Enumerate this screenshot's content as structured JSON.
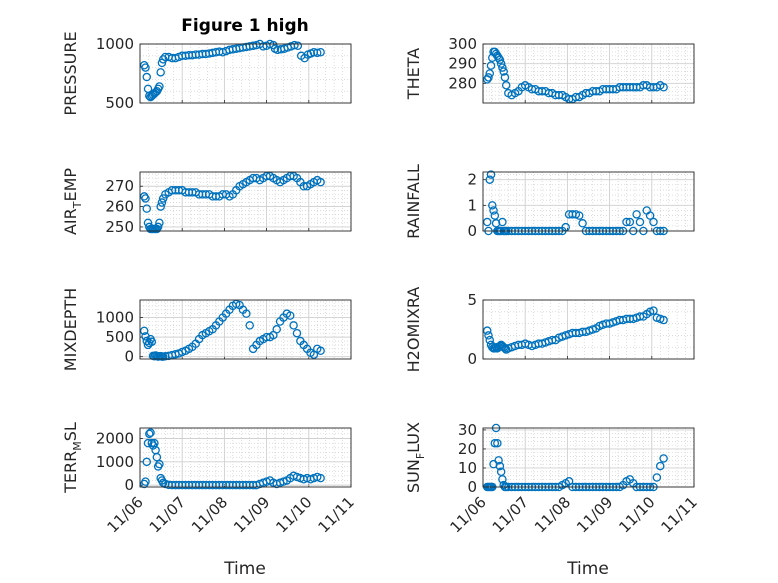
{
  "chart_data": {
    "type": "scatter",
    "title": "Figure 1 high",
    "xlabel": "Time",
    "xlim": [
      0,
      5
    ],
    "xticks": [
      0,
      1,
      2,
      3,
      4,
      5
    ],
    "xtick_labels": [
      "11/06",
      "11/07",
      "11/08",
      "11/09",
      "11/10",
      "11/11"
    ],
    "marker": "circle",
    "color": "#0072BD",
    "grid": "major+minor",
    "panels": [
      {
        "id": "pressure",
        "ylabel": "PRESSURE",
        "ylim": [
          500,
          1000
        ],
        "yticks": [
          500,
          1000
        ],
        "ytick_labels": [
          "500",
          "1000"
        ],
        "x": [
          0.1,
          0.13,
          0.16,
          0.19,
          0.22,
          0.25,
          0.28,
          0.31,
          0.34,
          0.37,
          0.4,
          0.43,
          0.46,
          0.49,
          0.52,
          0.55,
          0.6,
          0.68,
          0.76,
          0.84,
          0.92,
          1.0,
          1.08,
          1.16,
          1.24,
          1.32,
          1.4,
          1.48,
          1.56,
          1.64,
          1.72,
          1.8,
          1.88,
          1.96,
          2.04,
          2.12,
          2.2,
          2.28,
          2.36,
          2.44,
          2.52,
          2.6,
          2.68,
          2.76,
          2.84,
          2.92,
          3.0,
          3.08,
          3.16,
          3.2,
          3.26,
          3.34,
          3.42,
          3.5,
          3.58,
          3.66,
          3.74,
          3.82,
          3.9,
          3.98,
          4.05,
          4.12,
          4.2,
          4.28
        ],
        "y": [
          820,
          800,
          720,
          620,
          560,
          550,
          560,
          570,
          580,
          590,
          600,
          620,
          640,
          760,
          840,
          870,
          890,
          890,
          880,
          880,
          890,
          900,
          900,
          905,
          905,
          910,
          910,
          915,
          915,
          920,
          925,
          930,
          935,
          930,
          940,
          950,
          955,
          960,
          965,
          970,
          975,
          980,
          985,
          990,
          1000,
          980,
          985,
          1000,
          990,
          960,
          950,
          955,
          960,
          970,
          980,
          990,
          985,
          900,
          880,
          910,
          920,
          930,
          925,
          930
        ]
      },
      {
        "id": "theta",
        "ylabel": "THETA",
        "ylim": [
          270,
          300
        ],
        "yticks": [
          280,
          290,
          300
        ],
        "ytick_labels": [
          "280",
          "290",
          "300"
        ],
        "x": [
          0.1,
          0.13,
          0.16,
          0.19,
          0.22,
          0.25,
          0.28,
          0.31,
          0.34,
          0.37,
          0.4,
          0.43,
          0.46,
          0.49,
          0.52,
          0.55,
          0.6,
          0.68,
          0.76,
          0.84,
          0.92,
          1.0,
          1.08,
          1.16,
          1.24,
          1.32,
          1.4,
          1.48,
          1.56,
          1.64,
          1.72,
          1.8,
          1.88,
          1.96,
          2.04,
          2.12,
          2.2,
          2.28,
          2.36,
          2.44,
          2.52,
          2.6,
          2.68,
          2.76,
          2.84,
          2.92,
          3.0,
          3.08,
          3.16,
          3.24,
          3.32,
          3.4,
          3.48,
          3.56,
          3.64,
          3.72,
          3.8,
          3.88,
          3.96,
          4.04,
          4.12,
          4.2,
          4.28
        ],
        "y": [
          282,
          283,
          285,
          289,
          293,
          296,
          296,
          295,
          294,
          293,
          292,
          290,
          288,
          286,
          283,
          279,
          275,
          274,
          275,
          276,
          278,
          279,
          278,
          277,
          277,
          276,
          276,
          276,
          275,
          275,
          274,
          274,
          274,
          273,
          272,
          272,
          273,
          273,
          274,
          275,
          275,
          276,
          276,
          276,
          277,
          277,
          277,
          277,
          277,
          278,
          278,
          278,
          278,
          278,
          278,
          278,
          279,
          279,
          278,
          278,
          278,
          279,
          278
        ]
      },
      {
        "id": "air_temp",
        "ylabel": "AIR_TEMP",
        "ylabel_parts": [
          "AIR",
          "T",
          "EMP"
        ],
        "ylim": [
          248,
          277
        ],
        "yticks": [
          250,
          260,
          270
        ],
        "ytick_labels": [
          "250",
          "260",
          "270"
        ],
        "x": [
          0.1,
          0.13,
          0.16,
          0.19,
          0.22,
          0.25,
          0.28,
          0.31,
          0.34,
          0.37,
          0.4,
          0.43,
          0.46,
          0.49,
          0.52,
          0.55,
          0.6,
          0.68,
          0.76,
          0.84,
          0.92,
          1.0,
          1.08,
          1.16,
          1.24,
          1.32,
          1.4,
          1.48,
          1.56,
          1.64,
          1.72,
          1.8,
          1.88,
          1.96,
          2.04,
          2.12,
          2.2,
          2.28,
          2.36,
          2.44,
          2.52,
          2.6,
          2.68,
          2.76,
          2.84,
          2.92,
          3.0,
          3.08,
          3.16,
          3.24,
          3.32,
          3.4,
          3.48,
          3.56,
          3.64,
          3.72,
          3.8,
          3.88,
          3.96,
          4.04,
          4.12,
          4.2,
          4.28
        ],
        "y": [
          265,
          264,
          259,
          252,
          250,
          249,
          249,
          249,
          249,
          249,
          249,
          250,
          252,
          260,
          262,
          264,
          266,
          267,
          268,
          268,
          268,
          268,
          267,
          267,
          267,
          267,
          266,
          266,
          266,
          266,
          265,
          265,
          265,
          266,
          266,
          265,
          266,
          268,
          270,
          271,
          272,
          273,
          274,
          274,
          273,
          274,
          275,
          275,
          274,
          273,
          272,
          273,
          274,
          275,
          275,
          274,
          272,
          270,
          270,
          271,
          272,
          273,
          272
        ]
      },
      {
        "id": "rainfall",
        "ylabel": "RAINFALL",
        "ylim": [
          0,
          2.3
        ],
        "yticks": [
          0,
          1,
          2
        ],
        "ytick_labels": [
          "0",
          "1",
          "2"
        ],
        "x": [
          0.1,
          0.13,
          0.16,
          0.19,
          0.22,
          0.25,
          0.28,
          0.31,
          0.34,
          0.37,
          0.4,
          0.43,
          0.46,
          0.49,
          0.52,
          0.55,
          0.6,
          0.68,
          0.76,
          0.84,
          0.92,
          1.0,
          1.08,
          1.16,
          1.24,
          1.32,
          1.4,
          1.48,
          1.56,
          1.64,
          1.72,
          1.8,
          1.88,
          1.96,
          2.04,
          2.12,
          2.2,
          2.28,
          2.36,
          2.44,
          2.52,
          2.6,
          2.68,
          2.76,
          2.84,
          2.92,
          3.0,
          3.08,
          3.16,
          3.24,
          3.32,
          3.4,
          3.48,
          3.56,
          3.64,
          3.72,
          3.8,
          3.88,
          3.96,
          4.04,
          4.12,
          4.2,
          4.28
        ],
        "y": [
          0.35,
          0.0,
          2.0,
          2.2,
          1.0,
          0.8,
          0.6,
          0.3,
          0.0,
          0.0,
          0.0,
          0.0,
          0.35,
          0.0,
          0.0,
          0.0,
          0.0,
          0.0,
          0.0,
          0.0,
          0.0,
          0.0,
          0.0,
          0.0,
          0.0,
          0.0,
          0.0,
          0.0,
          0.0,
          0.0,
          0.0,
          0.0,
          0.0,
          0.15,
          0.65,
          0.65,
          0.65,
          0.6,
          0.3,
          0.0,
          0.0,
          0.0,
          0.0,
          0.0,
          0.0,
          0.0,
          0.0,
          0.0,
          0.0,
          0.0,
          0.0,
          0.35,
          0.35,
          0.0,
          0.65,
          0.35,
          0.0,
          0.8,
          0.6,
          0.35,
          0.0,
          0.0,
          0.0
        ]
      },
      {
        "id": "mixdepth",
        "ylabel": "MIXDEPTH",
        "ylim": [
          -60,
          1450
        ],
        "yticks": [
          0,
          500,
          1000
        ],
        "ytick_labels": [
          "0",
          "500",
          "1000"
        ],
        "x": [
          0.1,
          0.13,
          0.16,
          0.19,
          0.22,
          0.25,
          0.28,
          0.31,
          0.34,
          0.37,
          0.4,
          0.43,
          0.46,
          0.49,
          0.52,
          0.55,
          0.6,
          0.68,
          0.76,
          0.84,
          0.92,
          1.0,
          1.08,
          1.16,
          1.24,
          1.32,
          1.4,
          1.48,
          1.56,
          1.64,
          1.72,
          1.8,
          1.88,
          1.96,
          2.04,
          2.12,
          2.2,
          2.28,
          2.36,
          2.44,
          2.52,
          2.6,
          2.68,
          2.76,
          2.84,
          2.92,
          3.0,
          3.08,
          3.16,
          3.24,
          3.32,
          3.4,
          3.48,
          3.56,
          3.64,
          3.72,
          3.8,
          3.88,
          3.96,
          4.04,
          4.12,
          4.2,
          4.28
        ],
        "y": [
          660,
          520,
          400,
          300,
          350,
          450,
          380,
          20,
          10,
          30,
          15,
          0,
          10,
          15,
          0,
          0,
          10,
          20,
          40,
          60,
          80,
          120,
          150,
          200,
          250,
          330,
          450,
          550,
          600,
          650,
          700,
          800,
          900,
          1000,
          1100,
          1200,
          1300,
          1350,
          1320,
          1200,
          1100,
          800,
          200,
          300,
          400,
          450,
          500,
          500,
          550,
          700,
          900,
          1000,
          1100,
          1050,
          800,
          600,
          400,
          300,
          200,
          100,
          50,
          200,
          150
        ]
      },
      {
        "id": "h2omixra",
        "ylabel": "H2OMIXRA",
        "ylim": [
          0,
          5
        ],
        "yticks": [
          0,
          5
        ],
        "ytick_labels": [
          "0",
          "5"
        ],
        "x": [
          0.1,
          0.13,
          0.16,
          0.19,
          0.22,
          0.25,
          0.28,
          0.31,
          0.34,
          0.37,
          0.4,
          0.43,
          0.46,
          0.49,
          0.52,
          0.55,
          0.6,
          0.68,
          0.76,
          0.84,
          0.92,
          1.0,
          1.08,
          1.16,
          1.24,
          1.32,
          1.4,
          1.48,
          1.56,
          1.64,
          1.72,
          1.8,
          1.88,
          1.96,
          2.04,
          2.12,
          2.2,
          2.28,
          2.36,
          2.44,
          2.52,
          2.6,
          2.68,
          2.76,
          2.84,
          2.92,
          3.0,
          3.08,
          3.16,
          3.24,
          3.32,
          3.4,
          3.48,
          3.56,
          3.64,
          3.72,
          3.8,
          3.88,
          3.96,
          4.04,
          4.12,
          4.2,
          4.28
        ],
        "y": [
          2.4,
          2.0,
          1.6,
          1.2,
          1.0,
          0.9,
          0.9,
          1.0,
          0.9,
          1.0,
          1.1,
          1.2,
          1.1,
          1.0,
          0.9,
          0.8,
          0.9,
          1.0,
          1.1,
          1.2,
          1.2,
          1.3,
          1.2,
          1.1,
          1.2,
          1.3,
          1.3,
          1.4,
          1.5,
          1.6,
          1.6,
          1.8,
          1.9,
          2.0,
          2.1,
          2.2,
          2.2,
          2.2,
          2.3,
          2.3,
          2.4,
          2.5,
          2.6,
          2.8,
          2.9,
          3.0,
          3.0,
          3.1,
          3.2,
          3.3,
          3.3,
          3.4,
          3.4,
          3.4,
          3.5,
          3.6,
          3.6,
          3.8,
          4.0,
          4.1,
          3.5,
          3.4,
          3.3
        ]
      },
      {
        "id": "terr_msl",
        "ylabel": "TERR_MSL",
        "ylabel_parts": [
          "TERR",
          "M",
          "SL"
        ],
        "ylim": [
          -80,
          2450
        ],
        "yticks": [
          0,
          1000,
          2000
        ],
        "ytick_labels": [
          "0",
          "1000",
          "2000"
        ],
        "x": [
          0.1,
          0.13,
          0.16,
          0.19,
          0.22,
          0.25,
          0.28,
          0.31,
          0.34,
          0.37,
          0.4,
          0.43,
          0.46,
          0.49,
          0.52,
          0.55,
          0.6,
          0.68,
          0.76,
          0.84,
          0.92,
          1.0,
          1.08,
          1.16,
          1.24,
          1.32,
          1.4,
          1.48,
          1.56,
          1.64,
          1.72,
          1.8,
          1.88,
          1.96,
          2.04,
          2.12,
          2.2,
          2.28,
          2.36,
          2.44,
          2.52,
          2.6,
          2.68,
          2.76,
          2.84,
          2.92,
          3.0,
          3.08,
          3.16,
          3.24,
          3.32,
          3.4,
          3.48,
          3.56,
          3.64,
          3.72,
          3.8,
          3.88,
          3.96,
          4.04,
          4.12,
          4.2,
          4.28
        ],
        "y": [
          50,
          150,
          1000,
          1800,
          2200,
          2250,
          1800,
          1700,
          1800,
          1500,
          1200,
          800,
          900,
          300,
          200,
          100,
          50,
          10,
          0,
          0,
          0,
          0,
          0,
          0,
          0,
          0,
          0,
          0,
          0,
          0,
          0,
          0,
          0,
          0,
          0,
          0,
          0,
          0,
          0,
          0,
          0,
          0,
          0,
          0,
          50,
          100,
          150,
          200,
          100,
          50,
          100,
          150,
          200,
          300,
          400,
          350,
          300,
          250,
          300,
          250,
          300,
          350,
          300
        ]
      },
      {
        "id": "sun_flux",
        "ylabel": "SUN_FLUX",
        "ylabel_parts": [
          "SUN",
          "F",
          "LUX"
        ],
        "ylim": [
          0,
          31
        ],
        "yticks": [
          0,
          10,
          20,
          30
        ],
        "ytick_labels": [
          "0",
          "10",
          "20",
          "30"
        ],
        "x": [
          0.1,
          0.13,
          0.16,
          0.19,
          0.22,
          0.25,
          0.28,
          0.31,
          0.34,
          0.37,
          0.4,
          0.43,
          0.46,
          0.49,
          0.52,
          0.55,
          0.6,
          0.68,
          0.76,
          0.84,
          0.92,
          1.0,
          1.08,
          1.16,
          1.24,
          1.32,
          1.4,
          1.48,
          1.56,
          1.64,
          1.72,
          1.8,
          1.88,
          1.96,
          2.04,
          2.12,
          2.2,
          2.28,
          2.36,
          2.44,
          2.52,
          2.6,
          2.68,
          2.76,
          2.84,
          2.92,
          3.0,
          3.08,
          3.16,
          3.24,
          3.32,
          3.4,
          3.48,
          3.56,
          3.64,
          3.72,
          3.8,
          3.88,
          3.96,
          4.04,
          4.12,
          4.2,
          4.28
        ],
        "y": [
          0,
          0,
          0,
          0,
          0,
          12,
          23,
          31,
          23,
          14,
          11,
          8,
          4,
          1,
          0,
          0,
          0,
          0,
          0,
          0,
          0,
          0,
          0,
          0,
          0,
          0,
          0,
          0,
          0,
          0,
          0,
          0,
          1,
          2,
          3,
          0,
          0,
          0,
          0,
          0,
          0,
          0,
          0,
          0,
          0,
          0,
          0,
          0,
          0,
          0,
          1,
          3,
          4,
          2,
          0,
          0,
          0,
          0,
          0,
          0,
          5,
          11,
          15
        ]
      }
    ]
  }
}
